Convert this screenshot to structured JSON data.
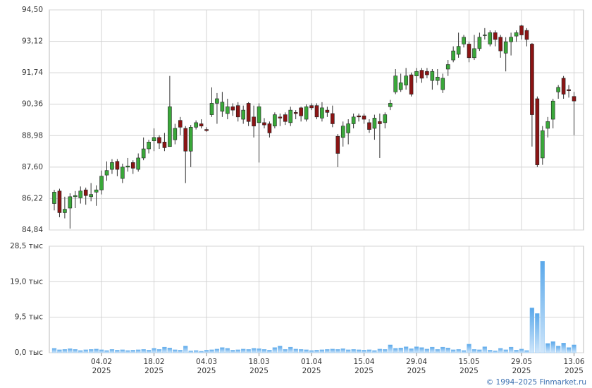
{
  "chart_data": {
    "type": "candlestick",
    "credit": "© 1994–2025 Finmarket.ru",
    "categories": [
      null,
      null,
      null,
      null,
      null,
      null,
      null,
      null,
      null,
      "04.02",
      null,
      null,
      null,
      null,
      null,
      null,
      null,
      null,
      null,
      "18.02",
      null,
      null,
      null,
      null,
      null,
      null,
      null,
      null,
      null,
      "04.03",
      null,
      null,
      null,
      null,
      null,
      null,
      null,
      null,
      null,
      "18.03",
      null,
      null,
      null,
      null,
      null,
      null,
      null,
      null,
      null,
      "01.04",
      null,
      null,
      null,
      null,
      null,
      null,
      null,
      null,
      null,
      "15.04",
      null,
      null,
      null,
      null,
      null,
      null,
      null,
      null,
      null,
      "29.04",
      null,
      null,
      null,
      null,
      null,
      null,
      null,
      null,
      null,
      "15.05",
      null,
      null,
      null,
      null,
      null,
      null,
      null,
      null,
      null,
      "29.05",
      null,
      null,
      null,
      null,
      null,
      null,
      null,
      null,
      null,
      "13.06"
    ],
    "category_sublabels": [
      null,
      null,
      null,
      null,
      null,
      null,
      null,
      null,
      null,
      "2025",
      null,
      null,
      null,
      null,
      null,
      null,
      null,
      null,
      null,
      "2025",
      null,
      null,
      null,
      null,
      null,
      null,
      null,
      null,
      null,
      "2025",
      null,
      null,
      null,
      null,
      null,
      null,
      null,
      null,
      null,
      "2025",
      null,
      null,
      null,
      null,
      null,
      null,
      null,
      null,
      null,
      "2025",
      null,
      null,
      null,
      null,
      null,
      null,
      null,
      null,
      null,
      "2025",
      null,
      null,
      null,
      null,
      null,
      null,
      null,
      null,
      null,
      "2025",
      null,
      null,
      null,
      null,
      null,
      null,
      null,
      null,
      null,
      "2025",
      null,
      null,
      null,
      null,
      null,
      null,
      null,
      null,
      null,
      "2025",
      null,
      null,
      null,
      null,
      null,
      null,
      null,
      null,
      null,
      "2025"
    ],
    "open": [
      86.0,
      86.55,
      85.6,
      85.8,
      86.3,
      86.25,
      86.6,
      86.3,
      86.5,
      86.6,
      87.25,
      87.5,
      87.85,
      87.1,
      87.6,
      87.8,
      87.5,
      88.0,
      88.4,
      88.75,
      88.9,
      88.7,
      88.5,
      88.8,
      89.65,
      89.3,
      88.3,
      89.35,
      89.5,
      89.25,
      89.9,
      90.4,
      90.05,
      89.95,
      90.25,
      90.3,
      89.7,
      90.4,
      89.8,
      89.55,
      89.55,
      89.5,
      89.4,
      89.8,
      89.9,
      89.55,
      90.0,
      90.2,
      89.7,
      90.3,
      90.3,
      89.75,
      90.1,
      89.95,
      88.95,
      88.9,
      89.1,
      89.5,
      89.85,
      89.85,
      89.55,
      89.3,
      89.6,
      89.55,
      90.25,
      90.9,
      91.0,
      91.2,
      91.65,
      91.6,
      91.85,
      91.8,
      91.4,
      91.4,
      91.0,
      91.9,
      92.3,
      92.55,
      93.0,
      93.0,
      92.4,
      92.8,
      93.4,
      93.0,
      93.5,
      93.3,
      92.6,
      93.1,
      93.35,
      93.8,
      93.6,
      93.0,
      90.6,
      88.0,
      89.3,
      89.7,
      90.9,
      91.5,
      91.0,
      90.7
    ],
    "high": [
      86.6,
      86.65,
      86.3,
      86.45,
      86.55,
      86.75,
      86.7,
      86.9,
      86.8,
      87.45,
      87.85,
      87.95,
      87.95,
      87.75,
      88.0,
      87.9,
      88.2,
      88.9,
      88.8,
      89.3,
      89.0,
      89.1,
      91.6,
      89.5,
      89.8,
      89.4,
      89.45,
      89.65,
      89.7,
      89.35,
      91.1,
      90.85,
      90.9,
      90.6,
      90.4,
      90.45,
      90.3,
      90.45,
      90.3,
      90.4,
      89.75,
      89.6,
      90.0,
      89.95,
      90.0,
      90.25,
      90.1,
      90.25,
      90.35,
      90.4,
      90.4,
      90.45,
      90.25,
      90.3,
      89.05,
      89.6,
      89.7,
      89.95,
      89.95,
      89.95,
      89.7,
      89.9,
      89.95,
      90.0,
      90.55,
      91.9,
      91.7,
      91.95,
      91.75,
      91.95,
      91.95,
      91.95,
      91.9,
      91.9,
      91.7,
      92.3,
      92.9,
      93.5,
      93.4,
      93.1,
      93.4,
      93.5,
      93.7,
      93.6,
      93.6,
      93.4,
      93.3,
      93.5,
      93.6,
      93.85,
      93.7,
      93.05,
      90.7,
      89.4,
      89.8,
      90.6,
      91.2,
      91.6,
      91.2,
      90.9
    ],
    "low": [
      85.7,
      85.4,
      85.35,
      84.9,
      85.8,
      86.0,
      85.95,
      86.1,
      85.9,
      86.4,
      87.0,
      87.3,
      87.2,
      86.9,
      87.4,
      87.3,
      87.4,
      87.9,
      88.2,
      88.3,
      88.4,
      88.3,
      88.5,
      88.6,
      89.0,
      86.9,
      87.6,
      89.25,
      89.3,
      89.15,
      89.8,
      89.5,
      89.8,
      89.7,
      89.85,
      89.6,
      89.5,
      89.4,
      88.9,
      87.8,
      89.3,
      88.9,
      89.3,
      89.4,
      89.45,
      89.4,
      89.7,
      89.6,
      89.6,
      90.1,
      89.7,
      89.6,
      89.8,
      89.35,
      87.6,
      88.5,
      88.6,
      89.3,
      89.6,
      89.5,
      89.1,
      88.8,
      88.0,
      89.3,
      90.1,
      90.8,
      90.9,
      91.0,
      90.7,
      91.3,
      91.3,
      91.5,
      91.0,
      91.2,
      90.85,
      91.6,
      92.2,
      92.4,
      92.85,
      92.2,
      92.3,
      92.7,
      93.2,
      92.9,
      92.9,
      92.4,
      91.8,
      92.5,
      93.1,
      93.2,
      92.9,
      88.5,
      87.6,
      87.7,
      88.9,
      89.3,
      90.6,
      90.6,
      90.65,
      89.0
    ],
    "close": [
      86.5,
      85.6,
      85.75,
      86.3,
      86.35,
      86.55,
      86.35,
      86.4,
      86.6,
      87.2,
      87.45,
      87.8,
      87.5,
      87.6,
      87.65,
      87.55,
      88.0,
      88.4,
      88.7,
      88.9,
      88.65,
      88.45,
      90.25,
      89.3,
      89.35,
      88.3,
      89.35,
      89.55,
      89.4,
      89.2,
      90.4,
      90.6,
      90.45,
      90.25,
      90.1,
      89.8,
      90.1,
      89.6,
      89.4,
      90.25,
      89.45,
      89.1,
      89.9,
      89.75,
      89.6,
      90.1,
      89.95,
      89.85,
      90.25,
      90.2,
      89.8,
      90.2,
      90.0,
      89.5,
      88.2,
      89.4,
      89.5,
      89.8,
      89.8,
      89.7,
      89.25,
      89.75,
      89.5,
      89.9,
      90.4,
      91.6,
      91.3,
      91.6,
      90.8,
      91.8,
      91.5,
      91.65,
      91.8,
      91.55,
      91.5,
      92.1,
      92.7,
      92.9,
      93.3,
      92.4,
      92.8,
      93.3,
      93.4,
      93.5,
      93.2,
      92.7,
      93.1,
      93.3,
      93.5,
      93.4,
      93.2,
      89.9,
      87.7,
      89.2,
      89.6,
      90.5,
      91.1,
      90.8,
      90.95,
      90.5
    ],
    "up_color": "#3aa83a",
    "down_color": "#8b1414",
    "ylim": [
      84.84,
      94.5
    ],
    "yticks": [
      {
        "value": 84.84,
        "label": "84,84"
      },
      {
        "value": 86.22,
        "label": "86,22"
      },
      {
        "value": 87.6,
        "label": "87,60"
      },
      {
        "value": 88.98,
        "label": "88,98"
      },
      {
        "value": 90.36,
        "label": "90,36"
      },
      {
        "value": 91.74,
        "label": "91,74"
      },
      {
        "value": 93.12,
        "label": "93,12"
      },
      {
        "value": 94.5,
        "label": "94,50"
      }
    ],
    "volume": [
      1.2,
      0.8,
      0.9,
      1.1,
      0.9,
      0.6,
      0.8,
      0.9,
      1.0,
      0.8,
      0.6,
      0.9,
      0.7,
      0.8,
      0.6,
      0.7,
      0.8,
      0.9,
      0.7,
      1.2,
      0.9,
      1.5,
      1.3,
      0.8,
      0.7,
      1.8,
      0.5,
      0.6,
      0.4,
      0.7,
      0.8,
      1.0,
      1.4,
      1.2,
      0.7,
      0.8,
      1.0,
      0.9,
      1.2,
      1.1,
      0.9,
      0.7,
      1.4,
      1.8,
      0.9,
      1.5,
      1.0,
      0.9,
      0.8,
      0.6,
      0.7,
      0.8,
      0.9,
      1.0,
      0.9,
      1.1,
      0.8,
      0.9,
      0.8,
      0.7,
      0.8,
      0.6,
      1.0,
      0.9,
      2.1,
      1.2,
      1.3,
      1.6,
      1.1,
      1.6,
      1.4,
      1.0,
      1.5,
      0.9,
      1.5,
      1.3,
      0.8,
      0.9,
      0.6,
      2.3,
      0.9,
      0.8,
      1.6,
      0.7,
      0.5,
      1.2,
      0.8,
      1.5,
      0.7,
      1.0,
      0.6,
      12.0,
      10.5,
      24.5,
      2.5,
      3.0,
      1.8,
      2.6,
      1.4,
      2.1
    ],
    "volume_color": "#7cbcef",
    "y2lim": [
      0,
      28.5
    ],
    "y2ticks": [
      {
        "value": 0,
        "label": "0,0 тыс"
      },
      {
        "value": 9.5,
        "label": "9,5 тыс"
      },
      {
        "value": 19.0,
        "label": "19,0 тыс"
      },
      {
        "value": 28.5,
        "label": "28,5 тыс"
      }
    ],
    "grid": true
  }
}
